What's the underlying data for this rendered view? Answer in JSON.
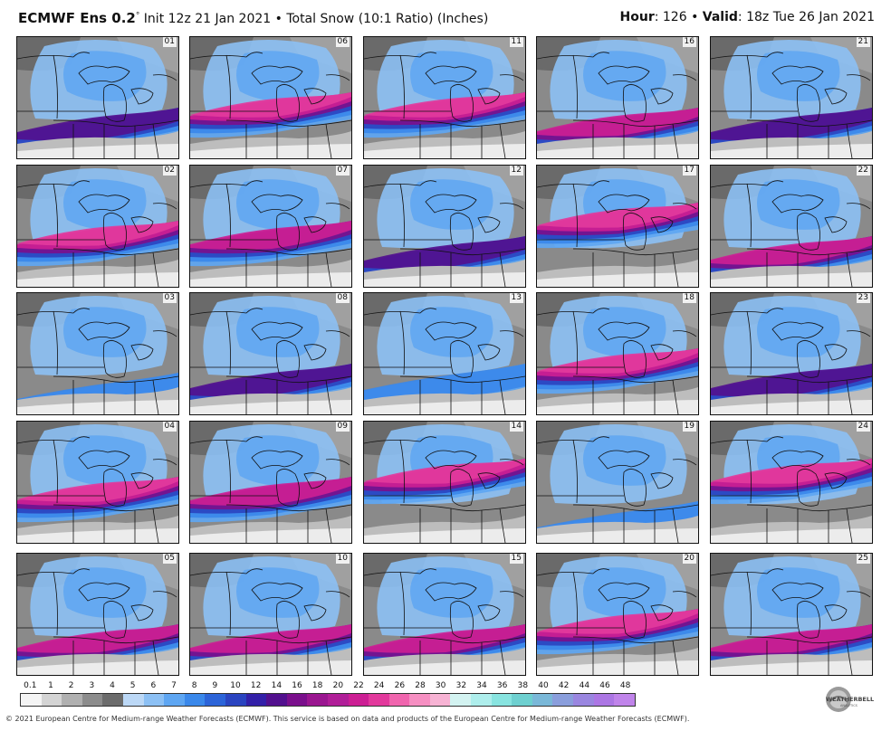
{
  "header": {
    "model": "ECMWF Ens 0.2",
    "degree": "°",
    "subtitle": "Init 12z 21 Jan 2021 • Total Snow (10:1 Ratio) (Inches)",
    "hour_label": "Hour",
    "hour_value": ": 126 • ",
    "valid_label": "Valid",
    "valid_value": ": 18z Tue 26 Jan 2021"
  },
  "panels": [
    {
      "member": "01",
      "band": "south",
      "intensity": 1
    },
    {
      "member": "06",
      "band": "mid",
      "intensity": 3
    },
    {
      "member": "11",
      "band": "mid",
      "intensity": 3
    },
    {
      "member": "16",
      "band": "south",
      "intensity": 2
    },
    {
      "member": "21",
      "band": "south",
      "intensity": 1
    },
    {
      "member": "02",
      "band": "mid",
      "intensity": 3
    },
    {
      "member": "07",
      "band": "mid",
      "intensity": 2
    },
    {
      "member": "12",
      "band": "south",
      "intensity": 1
    },
    {
      "member": "17",
      "band": "north",
      "intensity": 3
    },
    {
      "member": "22",
      "band": "south",
      "intensity": 2
    },
    {
      "member": "03",
      "band": "none",
      "intensity": 0
    },
    {
      "member": "08",
      "band": "south",
      "intensity": 1
    },
    {
      "member": "13",
      "band": "south",
      "intensity": 0
    },
    {
      "member": "18",
      "band": "mid",
      "intensity": 3
    },
    {
      "member": "23",
      "band": "south",
      "intensity": 1
    },
    {
      "member": "04",
      "band": "mid",
      "intensity": 3
    },
    {
      "member": "09",
      "band": "mid",
      "intensity": 2
    },
    {
      "member": "14",
      "band": "north",
      "intensity": 3
    },
    {
      "member": "19",
      "band": "none",
      "intensity": 0
    },
    {
      "member": "24",
      "band": "north",
      "intensity": 3
    },
    {
      "member": "05",
      "band": "south",
      "intensity": 2
    },
    {
      "member": "10",
      "band": "south",
      "intensity": 2
    },
    {
      "member": "15",
      "band": "south",
      "intensity": 2
    },
    {
      "member": "20",
      "band": "mid",
      "intensity": 3
    },
    {
      "member": "25",
      "band": "south",
      "intensity": 2
    }
  ],
  "legend": {
    "labels": [
      "0.1",
      "1",
      "2",
      "3",
      "4",
      "5",
      "6",
      "7",
      "8",
      "9",
      "10",
      "12",
      "14",
      "16",
      "18",
      "20",
      "22",
      "24",
      "26",
      "28",
      "30",
      "32",
      "34",
      "36",
      "38",
      "40",
      "42",
      "44",
      "46",
      "48"
    ],
    "colors": [
      "#f4f4f4",
      "#d4d4d4",
      "#b0b0b0",
      "#8c8c8c",
      "#6c6c6c",
      "#bcd8f6",
      "#8cc0f4",
      "#5ea6f2",
      "#3a88ea",
      "#2c64d8",
      "#2a44c0",
      "#3320a8",
      "#52108e",
      "#7a0f8c",
      "#9a1690",
      "#b01e98",
      "#cc1f94",
      "#e2399c",
      "#f065ae",
      "#f68fc2",
      "#f7b3d4",
      "#d3f3f1",
      "#aeeeec",
      "#88e4e0",
      "#6ed0d0",
      "#7ab8d8",
      "#8a9edc",
      "#9a86e0",
      "#ac76e4",
      "#c084ea"
    ]
  },
  "logo": {
    "text": "WEATHERBELL",
    "subtext": "ANALYTICS"
  },
  "footer": "© 2021 European Centre for Medium-range Weather Forecasts (ECMWF). This service is based on data and products of the European Centre for Medium-range Weather Forecasts (ECMWF)."
}
